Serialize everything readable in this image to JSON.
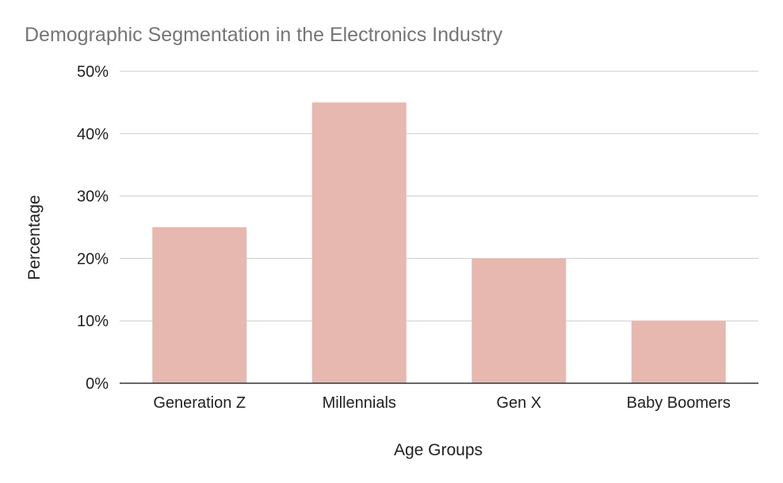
{
  "chart_data": {
    "type": "bar",
    "title": "Demographic Segmentation in the Electronics Industry",
    "xlabel": "Age Groups",
    "ylabel": "Percentage",
    "categories": [
      "Generation Z",
      "Millennials",
      "Gen X",
      "Baby Boomers"
    ],
    "values": [
      25,
      45,
      20,
      10
    ],
    "y_ticks": [
      "0%",
      "10%",
      "20%",
      "30%",
      "40%",
      "50%"
    ],
    "ylim": [
      0,
      50
    ],
    "grid": true,
    "legend": "none",
    "colors": {
      "bar": "#e6b8b0",
      "grid": "#cccccc",
      "axis": "#333333",
      "title": "#757575",
      "text": "#222222"
    }
  }
}
